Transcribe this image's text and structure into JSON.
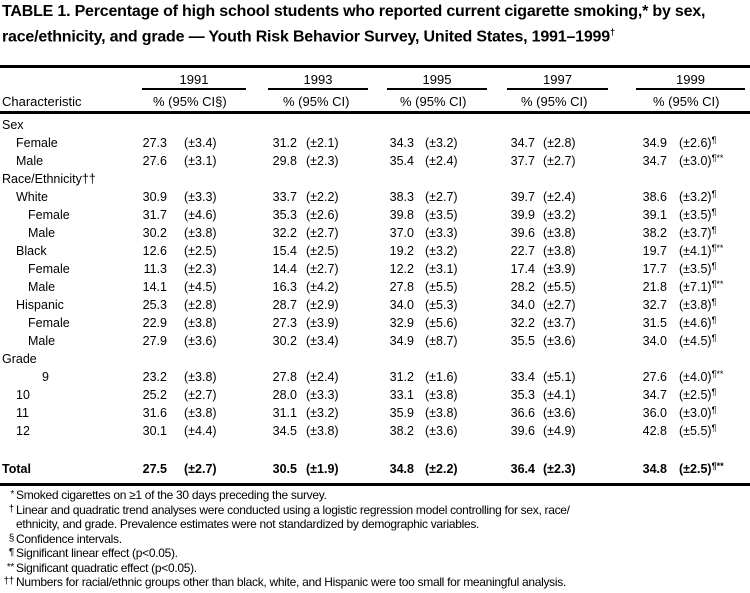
{
  "title": {
    "text": "TABLE 1. Percentage of high school students who reported current cigarette smoking,* by sex, race/ethnicity, and grade — Youth Risk Behavior Survey, United States, 1991–1999",
    "mark": "†"
  },
  "header": {
    "years": [
      "1991",
      "1993",
      "1995",
      "1997",
      "1999"
    ],
    "characteristic": "Characteristic",
    "col_labels": [
      "% (95% CI§)",
      "% (95% CI)",
      "% (95% CI)",
      "% (95% CI)",
      "% (95% CI)"
    ]
  },
  "rows": [
    {
      "label": "Sex",
      "type": "group",
      "cells": []
    },
    {
      "label": "Female",
      "indent": 1,
      "cells": [
        [
          "27.3",
          "(±3.4)",
          ""
        ],
        [
          "31.2",
          "(±2.1)",
          ""
        ],
        [
          "34.3",
          "(±3.2)",
          ""
        ],
        [
          "34.7",
          "(±2.8)",
          ""
        ],
        [
          "34.9",
          "(±2.6)",
          "¶"
        ]
      ]
    },
    {
      "label": "Male",
      "indent": 1,
      "cells": [
        [
          "27.6",
          "(±3.1)",
          ""
        ],
        [
          "29.8",
          "(±2.3)",
          ""
        ],
        [
          "35.4",
          "(±2.4)",
          ""
        ],
        [
          "37.7",
          "(±2.7)",
          ""
        ],
        [
          "34.7",
          "(±3.0)",
          "¶**"
        ]
      ]
    },
    {
      "label": "Race/Ethnicity††",
      "type": "group",
      "cells": []
    },
    {
      "label": "White",
      "indent": 1,
      "cells": [
        [
          "30.9",
          "(±3.3)",
          ""
        ],
        [
          "33.7",
          "(±2.2)",
          ""
        ],
        [
          "38.3",
          "(±2.7)",
          ""
        ],
        [
          "39.7",
          "(±2.4)",
          ""
        ],
        [
          "38.6",
          "(±3.2)",
          "¶"
        ]
      ]
    },
    {
      "label": "Female",
      "indent": 2,
      "cells": [
        [
          "31.7",
          "(±4.6)",
          ""
        ],
        [
          "35.3",
          "(±2.6)",
          ""
        ],
        [
          "39.8",
          "(±3.5)",
          ""
        ],
        [
          "39.9",
          "(±3.2)",
          ""
        ],
        [
          "39.1",
          "(±3.5)",
          "¶"
        ]
      ]
    },
    {
      "label": "Male",
      "indent": 2,
      "cells": [
        [
          "30.2",
          "(±3.8)",
          ""
        ],
        [
          "32.2",
          "(±2.7)",
          ""
        ],
        [
          "37.0",
          "(±3.3)",
          ""
        ],
        [
          "39.6",
          "(±3.8)",
          ""
        ],
        [
          "38.2",
          "(±3.7)",
          "¶"
        ]
      ]
    },
    {
      "label": "Black",
      "indent": 1,
      "cells": [
        [
          "12.6",
          "(±2.5)",
          ""
        ],
        [
          "15.4",
          "(±2.5)",
          ""
        ],
        [
          "19.2",
          "(±3.2)",
          ""
        ],
        [
          "22.7",
          "(±3.8)",
          ""
        ],
        [
          "19.7",
          "(±4.1)",
          "¶**"
        ]
      ]
    },
    {
      "label": "Female",
      "indent": 2,
      "cells": [
        [
          "11.3",
          "(±2.3)",
          ""
        ],
        [
          "14.4",
          "(±2.7)",
          ""
        ],
        [
          "12.2",
          "(±3.1)",
          ""
        ],
        [
          "17.4",
          "(±3.9)",
          ""
        ],
        [
          "17.7",
          "(±3.5)",
          "¶"
        ]
      ]
    },
    {
      "label": "Male",
      "indent": 2,
      "cells": [
        [
          "14.1",
          "(±4.5)",
          ""
        ],
        [
          "16.3",
          "(±4.2)",
          ""
        ],
        [
          "27.8",
          "(±5.5)",
          ""
        ],
        [
          "28.2",
          "(±5.5)",
          ""
        ],
        [
          "21.8",
          "(±7.1)",
          "¶**"
        ]
      ]
    },
    {
      "label": "Hispanic",
      "indent": 1,
      "cells": [
        [
          "25.3",
          "(±2.8)",
          ""
        ],
        [
          "28.7",
          "(±2.9)",
          ""
        ],
        [
          "34.0",
          "(±5.3)",
          ""
        ],
        [
          "34.0",
          "(±2.7)",
          ""
        ],
        [
          "32.7",
          "(±3.8)",
          "¶"
        ]
      ]
    },
    {
      "label": "Female",
      "indent": 2,
      "cells": [
        [
          "22.9",
          "(±3.8)",
          ""
        ],
        [
          "27.3",
          "(±3.9)",
          ""
        ],
        [
          "32.9",
          "(±5.6)",
          ""
        ],
        [
          "32.2",
          "(±3.7)",
          ""
        ],
        [
          "31.5",
          "(±4.6)",
          "¶"
        ]
      ]
    },
    {
      "label": "Male",
      "indent": 2,
      "cells": [
        [
          "27.9",
          "(±3.6)",
          ""
        ],
        [
          "30.2",
          "(±3.4)",
          ""
        ],
        [
          "34.9",
          "(±8.7)",
          ""
        ],
        [
          "35.5",
          "(±3.6)",
          ""
        ],
        [
          "34.0",
          "(±4.5)",
          "¶"
        ]
      ]
    },
    {
      "label": "Grade",
      "type": "group",
      "cells": []
    },
    {
      "label": "9",
      "indent": 3,
      "cells": [
        [
          "23.2",
          "(±3.8)",
          ""
        ],
        [
          "27.8",
          "(±2.4)",
          ""
        ],
        [
          "31.2",
          "(±1.6)",
          ""
        ],
        [
          "33.4",
          "(±5.1)",
          ""
        ],
        [
          "27.6",
          "(±4.0)",
          "¶**"
        ]
      ]
    },
    {
      "label": "10",
      "indent": 1,
      "cells": [
        [
          "25.2",
          "(±2.7)",
          ""
        ],
        [
          "28.0",
          "(±3.3)",
          ""
        ],
        [
          "33.1",
          "(±3.8)",
          ""
        ],
        [
          "35.3",
          "(±4.1)",
          ""
        ],
        [
          "34.7",
          "(±2.5)",
          "¶"
        ]
      ]
    },
    {
      "label": "11",
      "indent": 1,
      "cells": [
        [
          "31.6",
          "(±3.8)",
          ""
        ],
        [
          "31.1",
          "(±3.2)",
          ""
        ],
        [
          "35.9",
          "(±3.8)",
          ""
        ],
        [
          "36.6",
          "(±3.6)",
          ""
        ],
        [
          "36.0",
          "(±3.0)",
          "¶"
        ]
      ]
    },
    {
      "label": "12",
      "indent": 1,
      "cells": [
        [
          "30.1",
          "(±4.4)",
          ""
        ],
        [
          "34.5",
          "(±3.8)",
          ""
        ],
        [
          "38.2",
          "(±3.6)",
          ""
        ],
        [
          "39.6",
          "(±4.9)",
          ""
        ],
        [
          "42.8",
          "(±5.5)",
          "¶"
        ]
      ]
    },
    {
      "label": "Total",
      "type": "total",
      "cells": [
        [
          "27.5",
          "(±2.7)",
          ""
        ],
        [
          "30.5",
          "(±1.9)",
          ""
        ],
        [
          "34.8",
          "(±2.2)",
          ""
        ],
        [
          "36.4",
          "(±2.3)",
          ""
        ],
        [
          "34.8",
          "(±2.5)",
          "¶**"
        ]
      ]
    }
  ],
  "footnotes": [
    {
      "sym": "*",
      "text": "Smoked cigarettes on ≥1 of the 30 days preceding the survey."
    },
    {
      "sym": "†",
      "text": "Linear and quadratic trend analyses were conducted using a logistic regression model controlling for sex, race/"
    },
    {
      "sym": "",
      "text": "ethnicity, and grade.  Prevalence estimates were not standardized by demographic variables."
    },
    {
      "sym": "§",
      "text": "Confidence intervals."
    },
    {
      "sym": "¶",
      "text": "Significant linear effect (p<0.05)."
    },
    {
      "sym": "**",
      "text": "Significant quadratic effect (p<0.05)."
    },
    {
      "sym": "††",
      "text": "Numbers for racial/ethnic groups other than black, white, and Hispanic were too small for meaningful analysis."
    }
  ]
}
